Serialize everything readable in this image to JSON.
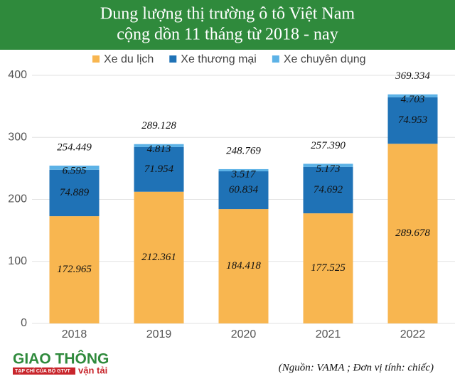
{
  "header": {
    "title_line1": "Dung lượng thị trường ô tô Việt Nam",
    "title_line2": "cộng dồn 11 tháng từ 2018 - nay"
  },
  "chart_data": {
    "type": "stacked_bar",
    "categories": [
      "2018",
      "2019",
      "2020",
      "2021",
      "2022"
    ],
    "series": [
      {
        "name": "Xe du lịch",
        "color": "#f8b650",
        "values": [
          172.965,
          212.361,
          184.418,
          177.525,
          289.678
        ]
      },
      {
        "name": "Xe thương mại",
        "color": "#1f72b6",
        "values": [
          74.889,
          71.954,
          60.834,
          74.692,
          74.953
        ]
      },
      {
        "name": "Xe chuyên dụng",
        "color": "#5cb2e6",
        "values": [
          6.595,
          4.813,
          3.517,
          5.173,
          4.703
        ]
      }
    ],
    "totals": [
      254.449,
      289.128,
      248.769,
      257.39,
      369.334
    ],
    "total_labels": [
      "254.449",
      "289.128",
      "248.769",
      "257.390",
      "369.334"
    ],
    "ylim": [
      0,
      400
    ],
    "yticks": [
      0,
      100,
      200,
      300,
      400
    ],
    "grid": true,
    "legend": "top"
  },
  "footer": {
    "logo_main": "GIAO THÔNG",
    "logo_sub": "TẠP CHÍ CỦA BỘ GTVT",
    "logo_tag": "vận tải",
    "source": "(Nguồn: VAMA ; Đơn vị tính: chiếc)"
  }
}
